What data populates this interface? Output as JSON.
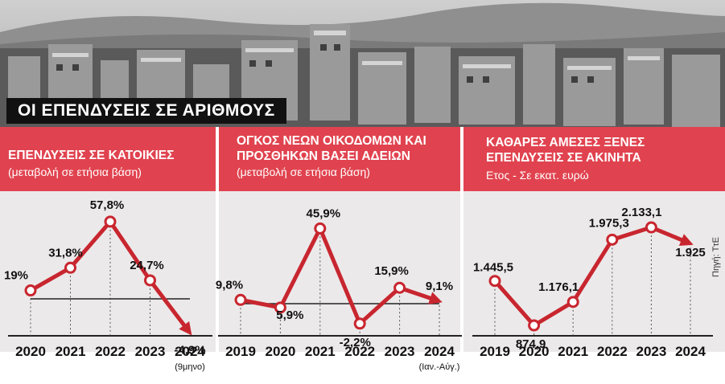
{
  "banner": "ΟΙ ΕΠΕΝΔΥΣΕΙΣ ΣΕ ΑΡΙΘΜΟΥΣ",
  "source": "Πηγή: ΤτΕ",
  "colors": {
    "accent": "#e0434f",
    "line": "#c8262f",
    "panel_bg": "#ece9ea"
  },
  "chart_data": [
    {
      "type": "line",
      "title": "ΕΠΕΝΔΥΣΕΙΣ ΣΕ ΚΑΤΟΙΚΙΕΣ",
      "subtitle": "(μεταβολή σε ετήσια βάση)",
      "x": [
        "2020",
        "2021",
        "2022",
        "2023",
        "2024"
      ],
      "x_note": "(9μηνο)",
      "values": [
        19,
        31.8,
        57.8,
        24.7,
        -4.9
      ],
      "labels": [
        "19%",
        "31,8%",
        "57,8%",
        "24,7%",
        "-4,9%"
      ],
      "ylim": [
        -12,
        65
      ]
    },
    {
      "type": "line",
      "title": "ΟΓΚΟΣ ΝΕΩΝ ΟΙΚΟΔΟΜΩΝ ΚΑΙ ΠΡΟΣΘΗΚΩΝ ΒΑΣΕΙ ΑΔΕΙΩΝ",
      "subtitle": "(μεταβολή σε ετήσια βάση)",
      "x": [
        "2019",
        "2020",
        "2021",
        "2022",
        "2023",
        "2024"
      ],
      "x_note": "(Ιαν.-Αύγ.)",
      "values": [
        9.8,
        5.9,
        45.9,
        -2.2,
        15.9,
        9.1
      ],
      "labels": [
        "9,8%",
        "5,9%",
        "45,9%",
        "-2,2%",
        "15,9%",
        "9,1%"
      ],
      "ylim": [
        -10,
        55
      ]
    },
    {
      "type": "line",
      "title": "ΚΑΘΑΡΕΣ ΑΜΕΣΕΣ ΞΕΝΕΣ ΕΠΕΝΔΥΣΕΙΣ ΣΕ ΑΚΙΝΗΤΑ",
      "subtitle": "Ετος - Σε εκατ. ευρώ",
      "x": [
        "2019",
        "2020",
        "2021",
        "2022",
        "2023",
        "2024"
      ],
      "x_note": "",
      "values": [
        1445.5,
        874.9,
        1176.1,
        1975.3,
        2133.1,
        1925
      ],
      "labels": [
        "1.445,5",
        "874,9",
        "1.176,1",
        "1.975,3",
        "2.133,1",
        "1.925"
      ],
      "ylim": [
        700,
        2350
      ]
    }
  ]
}
